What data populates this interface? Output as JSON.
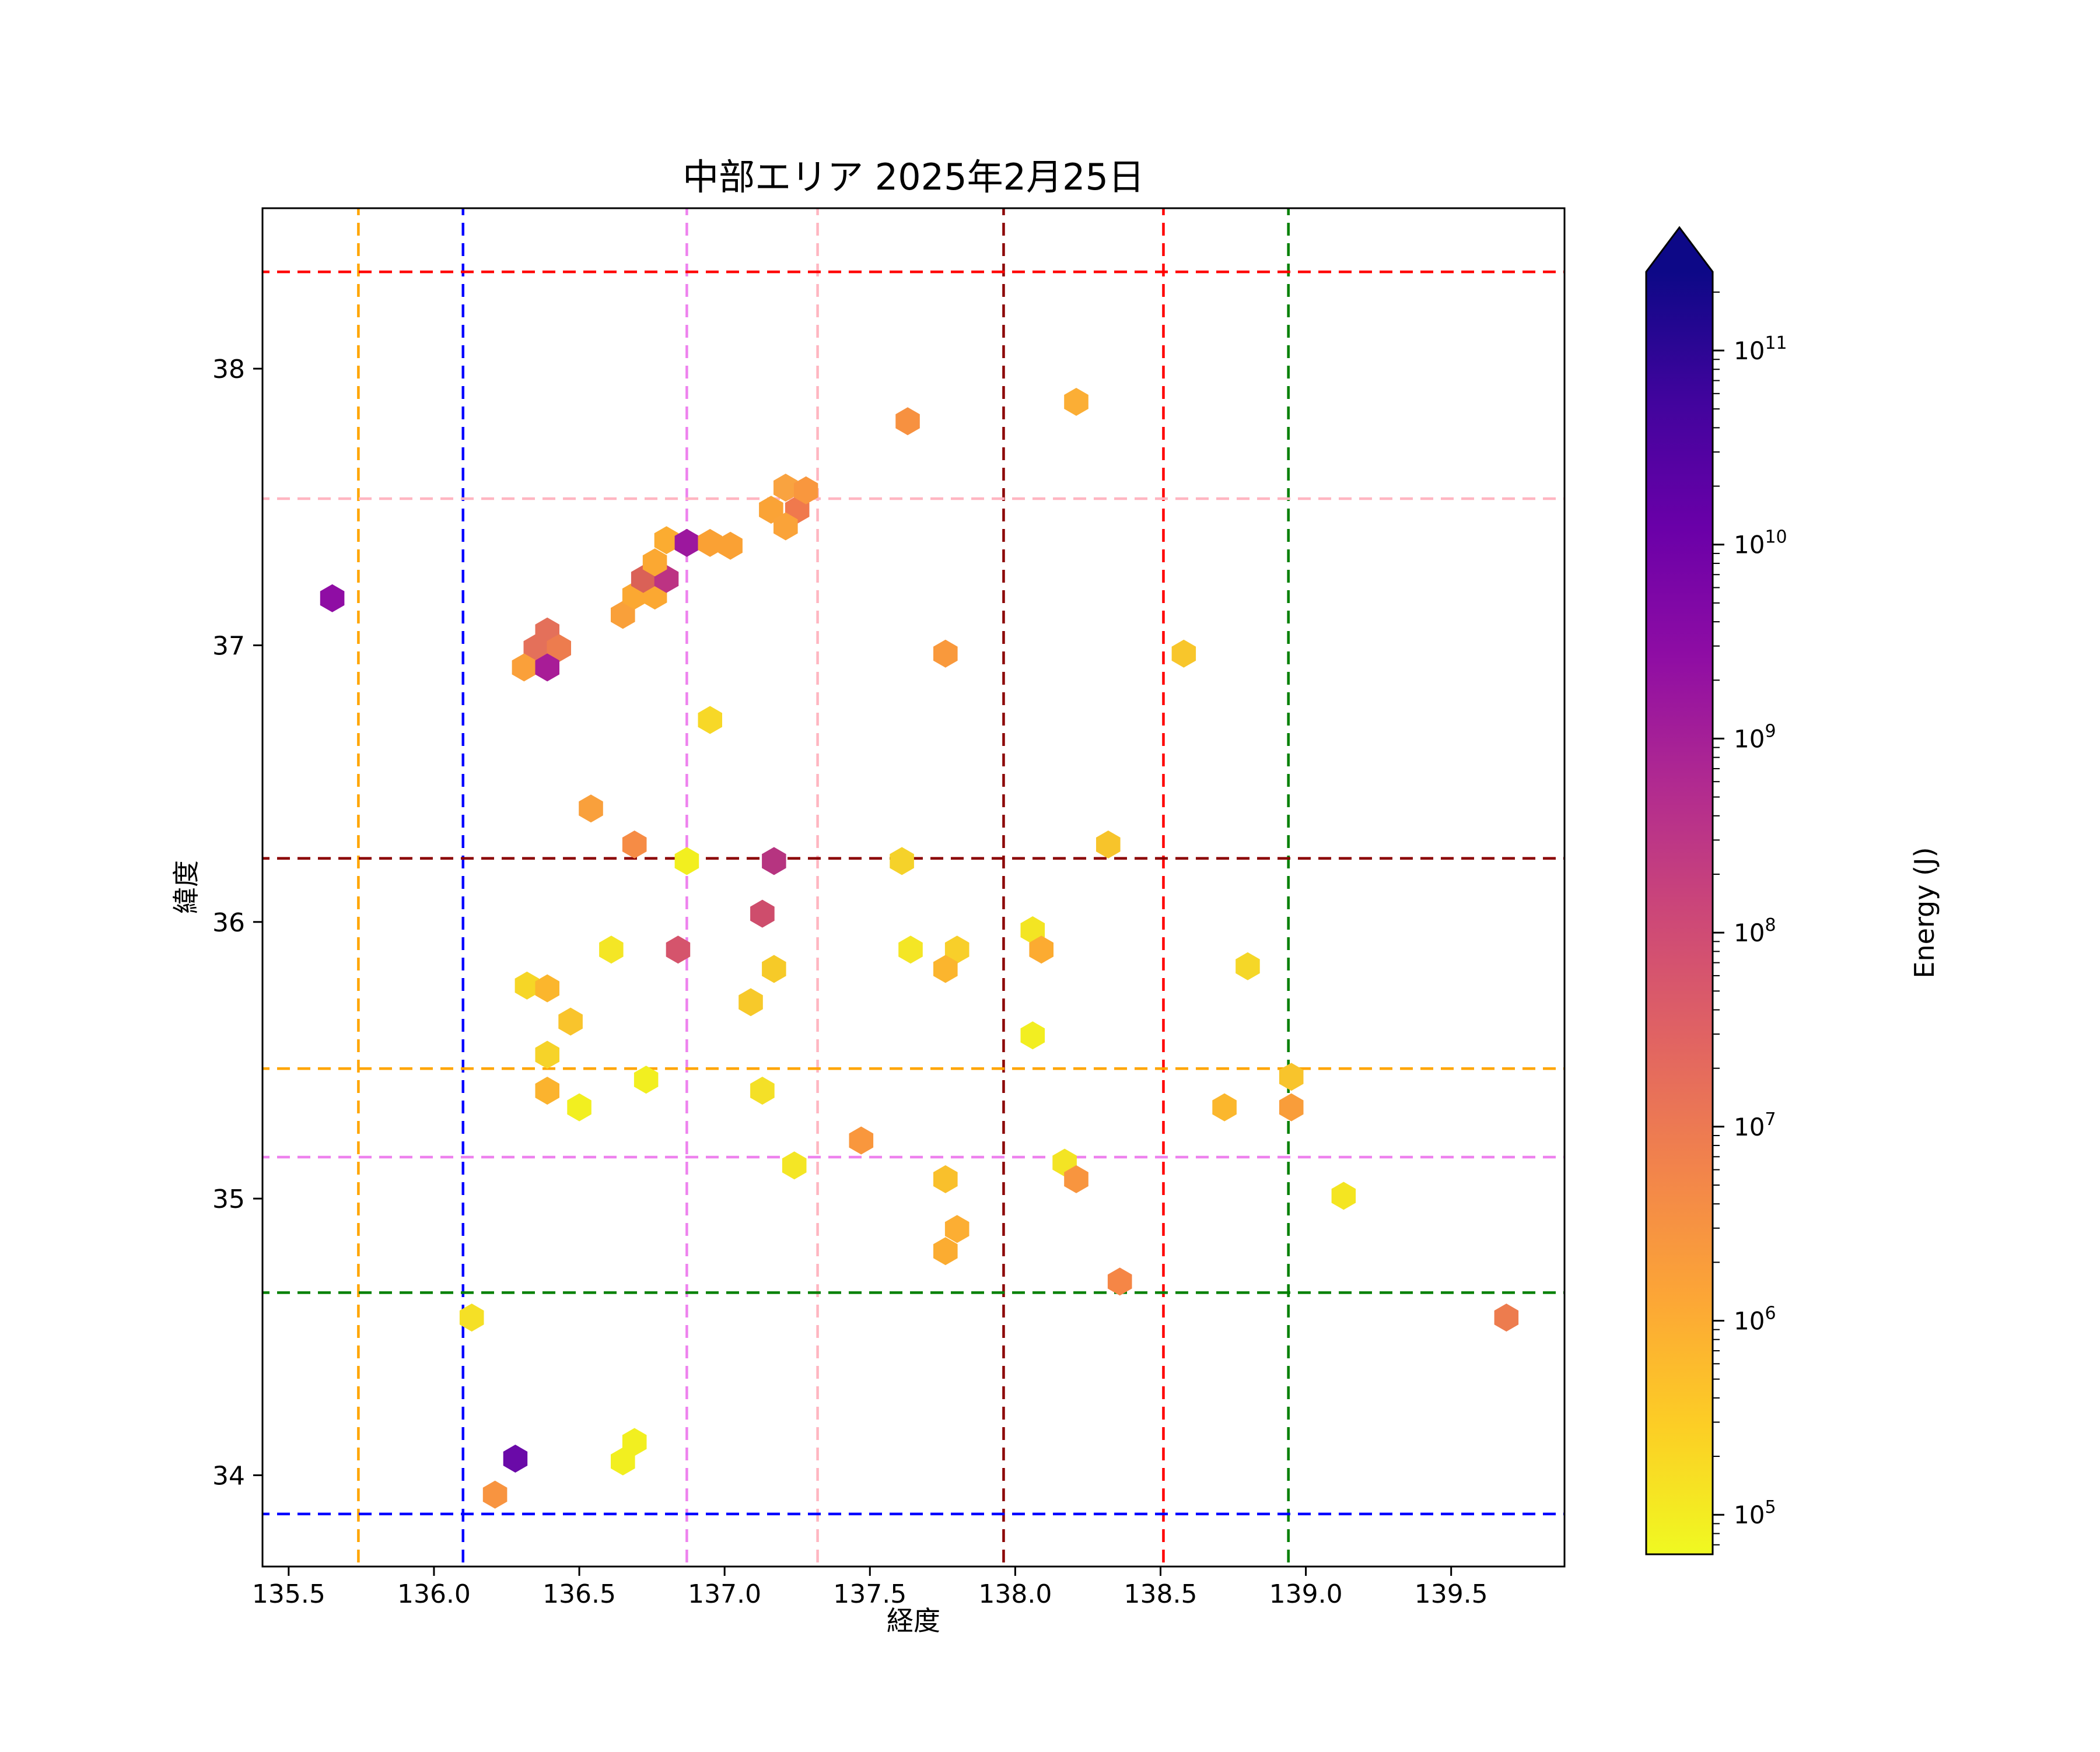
{
  "page": {
    "background": "#ffffff"
  },
  "chart_data": {
    "type": "scatter",
    "marker": "hexagon",
    "title": "中部エリア 2025年2月25日",
    "xlabel": "経度",
    "ylabel": "緯度",
    "xlim": [
      135.41,
      139.89
    ],
    "ylim": [
      33.67,
      38.58
    ],
    "xticks": [
      135.5,
      136.0,
      136.5,
      137.0,
      137.5,
      138.0,
      138.5,
      139.0,
      139.5
    ],
    "xtick_labels": [
      "135.5",
      "136.0",
      "136.5",
      "137.0",
      "137.5",
      "138.0",
      "138.5",
      "139.0",
      "139.5"
    ],
    "yticks": [
      34,
      35,
      36,
      37,
      38
    ],
    "ytick_labels": [
      "34",
      "35",
      "36",
      "37",
      "38"
    ],
    "grid": false,
    "legend": "none",
    "colorbar": {
      "label": "Energy (J)",
      "scale": "log",
      "extend": "max",
      "colormap": "plasma_r",
      "tick_exponents": [
        11,
        10,
        9,
        8,
        7,
        6,
        5
      ],
      "tick_base": "10",
      "range_exponents": [
        4.8,
        11.4
      ],
      "stops_top_to_bottom": [
        "#0d0887",
        "#41049d",
        "#6a00a8",
        "#8f0da4",
        "#b12a90",
        "#cc4778",
        "#e16462",
        "#f2844b",
        "#fca636",
        "#fcce25",
        "#f0f921"
      ]
    },
    "reference_lines": {
      "vertical": [
        {
          "name": "orange-line",
          "color": "#ffa500",
          "lon": 135.74
        },
        {
          "name": "blue-line",
          "color": "#0000ff",
          "lon": 136.1
        },
        {
          "name": "violet-line",
          "color": "#ee82ee",
          "lon": 136.87
        },
        {
          "name": "pink-line",
          "color": "#ffb6c1",
          "lon": 137.32
        },
        {
          "name": "darkred-line",
          "color": "#8b0000",
          "lon": 137.96
        },
        {
          "name": "red-line",
          "color": "#ff0000",
          "lon": 138.51
        },
        {
          "name": "green-line",
          "color": "#008000",
          "lon": 138.94
        }
      ],
      "horizontal": [
        {
          "name": "red-line",
          "color": "#ff0000",
          "lat": 38.35
        },
        {
          "name": "pink-line",
          "color": "#ffb6c1",
          "lat": 37.53
        },
        {
          "name": "darkred-line",
          "color": "#8b0000",
          "lat": 36.23
        },
        {
          "name": "orange-line",
          "color": "#ffa500",
          "lat": 35.47
        },
        {
          "name": "violet-line",
          "color": "#ee82ee",
          "lat": 35.15
        },
        {
          "name": "green-line",
          "color": "#008000",
          "lat": 34.66
        },
        {
          "name": "blue-line",
          "color": "#0000ff",
          "lat": 33.86
        }
      ]
    },
    "points": [
      {
        "lon": 135.65,
        "lat": 37.17,
        "color": "#8f0da4",
        "energy": 3500000000.0
      },
      {
        "lon": 136.39,
        "lat": 37.05,
        "color": "#e4705a",
        "energy": 20000000.0
      },
      {
        "lon": 136.35,
        "lat": 36.99,
        "color": "#e4705a",
        "energy": 20000000.0
      },
      {
        "lon": 136.43,
        "lat": 36.99,
        "color": "#ed7c4e",
        "energy": 10000000.0
      },
      {
        "lon": 136.31,
        "lat": 36.92,
        "color": "#faa03a",
        "energy": 2000000.0
      },
      {
        "lon": 136.39,
        "lat": 36.92,
        "color": "#a81c97",
        "energy": 1300000000.0
      },
      {
        "lon": 136.65,
        "lat": 37.11,
        "color": "#f9a03a",
        "energy": 2000000.0
      },
      {
        "lon": 136.69,
        "lat": 37.18,
        "color": "#fba832",
        "energy": 900000.0
      },
      {
        "lon": 136.76,
        "lat": 37.18,
        "color": "#fba832",
        "energy": 900000.0
      },
      {
        "lon": 136.72,
        "lat": 37.24,
        "color": "#da6157",
        "energy": 40000000.0
      },
      {
        "lon": 136.8,
        "lat": 37.24,
        "color": "#bc3383",
        "energy": 300000000.0
      },
      {
        "lon": 136.76,
        "lat": 37.3,
        "color": "#fba832",
        "energy": 900000.0
      },
      {
        "lon": 136.8,
        "lat": 37.38,
        "color": "#fbac31",
        "energy": 800000.0
      },
      {
        "lon": 136.87,
        "lat": 37.37,
        "color": "#9c179e",
        "energy": 2000000000.0
      },
      {
        "lon": 136.95,
        "lat": 37.37,
        "color": "#faa134",
        "energy": 1800000.0
      },
      {
        "lon": 137.02,
        "lat": 37.36,
        "color": "#faa134",
        "energy": 1800000.0
      },
      {
        "lon": 137.16,
        "lat": 37.49,
        "color": "#faa336",
        "energy": 1700000.0
      },
      {
        "lon": 137.25,
        "lat": 37.49,
        "color": "#f0794d",
        "energy": 11000000.0
      },
      {
        "lon": 137.21,
        "lat": 37.57,
        "color": "#f9a340",
        "energy": 1600000.0
      },
      {
        "lon": 137.28,
        "lat": 37.56,
        "color": "#f9973e",
        "energy": 2800000.0
      },
      {
        "lon": 137.21,
        "lat": 37.43,
        "color": "#faa339",
        "energy": 1600000.0
      },
      {
        "lon": 137.63,
        "lat": 37.81,
        "color": "#f79140",
        "energy": 4000000.0
      },
      {
        "lon": 138.21,
        "lat": 37.88,
        "color": "#fbae35",
        "energy": 800000.0
      },
      {
        "lon": 136.95,
        "lat": 36.73,
        "color": "#f7d827",
        "energy": 200000.0
      },
      {
        "lon": 137.76,
        "lat": 36.97,
        "color": "#f9993c",
        "energy": 2800000.0
      },
      {
        "lon": 138.58,
        "lat": 36.97,
        "color": "#f8c62b",
        "energy": 400000.0
      },
      {
        "lon": 136.54,
        "lat": 36.41,
        "color": "#f9a03c",
        "energy": 2000000.0
      },
      {
        "lon": 136.69,
        "lat": 36.28,
        "color": "#f68c45",
        "energy": 5000000.0
      },
      {
        "lon": 136.87,
        "lat": 36.22,
        "color": "#f2ef1f",
        "energy": 120000.0
      },
      {
        "lon": 137.17,
        "lat": 36.22,
        "color": "#b63480",
        "energy": 600000000.0
      },
      {
        "lon": 137.61,
        "lat": 36.22,
        "color": "#f5d22a",
        "energy": 300000.0
      },
      {
        "lon": 138.32,
        "lat": 36.28,
        "color": "#f7c42b",
        "energy": 450000.0
      },
      {
        "lon": 137.13,
        "lat": 36.03,
        "color": "#ce4d6c",
        "energy": 160000000.0
      },
      {
        "lon": 136.61,
        "lat": 35.9,
        "color": "#f4e625",
        "energy": 150000.0
      },
      {
        "lon": 136.84,
        "lat": 35.9,
        "color": "#d5546c",
        "energy": 80000000.0
      },
      {
        "lon": 137.64,
        "lat": 35.9,
        "color": "#f4e625",
        "energy": 150000.0
      },
      {
        "lon": 137.17,
        "lat": 35.83,
        "color": "#f6ca28",
        "energy": 350000.0
      },
      {
        "lon": 136.32,
        "lat": 35.77,
        "color": "#f6d626",
        "energy": 250000.0
      },
      {
        "lon": 136.39,
        "lat": 35.76,
        "color": "#fbb62d",
        "energy": 700000.0
      },
      {
        "lon": 137.09,
        "lat": 35.71,
        "color": "#f7c92a",
        "energy": 350000.0
      },
      {
        "lon": 136.47,
        "lat": 35.64,
        "color": "#f9c42c",
        "energy": 500000.0
      },
      {
        "lon": 136.39,
        "lat": 35.52,
        "color": "#f6d329",
        "energy": 250000.0
      },
      {
        "lon": 136.73,
        "lat": 35.43,
        "color": "#f2ef20",
        "energy": 120000.0
      },
      {
        "lon": 136.39,
        "lat": 35.39,
        "color": "#fbb32e",
        "energy": 700000.0
      },
      {
        "lon": 136.5,
        "lat": 35.33,
        "color": "#f2ef20",
        "energy": 100000.0
      },
      {
        "lon": 137.13,
        "lat": 35.39,
        "color": "#f4e027",
        "energy": 200000.0
      },
      {
        "lon": 138.06,
        "lat": 35.97,
        "color": "#f3e523",
        "energy": 150000.0
      },
      {
        "lon": 138.09,
        "lat": 35.9,
        "color": "#fcab31",
        "energy": 1200000.0
      },
      {
        "lon": 137.8,
        "lat": 35.9,
        "color": "#f8cf2a",
        "energy": 300000.0
      },
      {
        "lon": 137.76,
        "lat": 35.83,
        "color": "#fbb52e",
        "energy": 700000.0
      },
      {
        "lon": 138.8,
        "lat": 35.84,
        "color": "#f5d728",
        "energy": 250000.0
      },
      {
        "lon": 138.06,
        "lat": 35.59,
        "color": "#f2ee21",
        "energy": 100000.0
      },
      {
        "lon": 138.95,
        "lat": 35.44,
        "color": "#f8c42c",
        "energy": 500000.0
      },
      {
        "lon": 138.72,
        "lat": 35.33,
        "color": "#fbb72d",
        "energy": 700000.0
      },
      {
        "lon": 138.95,
        "lat": 35.33,
        "color": "#f99d3a",
        "energy": 2500000.0
      },
      {
        "lon": 137.47,
        "lat": 35.21,
        "color": "#f9973d",
        "energy": 2800000.0
      },
      {
        "lon": 137.24,
        "lat": 35.12,
        "color": "#f4e625",
        "energy": 150000.0
      },
      {
        "lon": 137.76,
        "lat": 35.07,
        "color": "#f9c02c",
        "energy": 500000.0
      },
      {
        "lon": 138.17,
        "lat": 35.13,
        "color": "#f3e424",
        "energy": 150000.0
      },
      {
        "lon": 138.21,
        "lat": 35.07,
        "color": "#f8953f",
        "energy": 3000000.0
      },
      {
        "lon": 137.8,
        "lat": 34.89,
        "color": "#fcae33",
        "energy": 1000000.0
      },
      {
        "lon": 137.76,
        "lat": 34.81,
        "color": "#fbac31",
        "energy": 900000.0
      },
      {
        "lon": 138.36,
        "lat": 34.7,
        "color": "#f58646",
        "energy": 6000000.0
      },
      {
        "lon": 139.13,
        "lat": 35.01,
        "color": "#f4e521",
        "energy": 150000.0
      },
      {
        "lon": 139.69,
        "lat": 34.57,
        "color": "#ed7c4e",
        "energy": 10000000.0
      },
      {
        "lon": 136.13,
        "lat": 34.57,
        "color": "#f5e026",
        "energy": 200000.0
      },
      {
        "lon": 136.28,
        "lat": 34.06,
        "color": "#6a0aa8",
        "energy": 16000000000.0
      },
      {
        "lon": 136.21,
        "lat": 33.93,
        "color": "#f89440",
        "energy": 3000000.0
      },
      {
        "lon": 136.69,
        "lat": 34.12,
        "color": "#f2ef20",
        "energy": 120000.0
      },
      {
        "lon": 136.65,
        "lat": 34.05,
        "color": "#f2ef20",
        "energy": 120000.0
      }
    ]
  }
}
